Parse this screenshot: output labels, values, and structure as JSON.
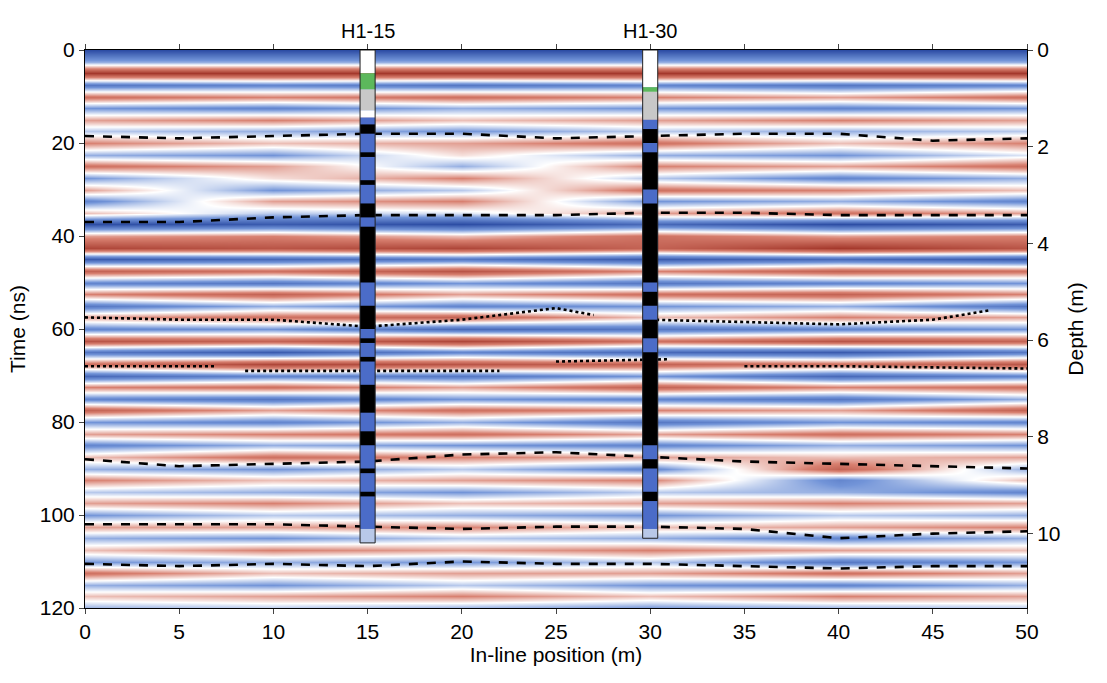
{
  "chart_data": {
    "type": "heatmap",
    "xlabel": "In-line position (m)",
    "ylabel": "Time (ns)",
    "y2label": "Depth (m)",
    "xlim": [
      0,
      50
    ],
    "xticks": [
      0,
      5,
      10,
      15,
      20,
      25,
      30,
      35,
      40,
      45,
      50
    ],
    "ylim": [
      0,
      120
    ],
    "yticks": [
      0,
      20,
      40,
      60,
      80,
      100,
      120
    ],
    "y2lim": [
      0,
      11.54
    ],
    "y2ticks": [
      0,
      2,
      4,
      6,
      8,
      10
    ],
    "heatmap": {
      "zlim": [
        -1,
        1
      ],
      "x": [
        0,
        10,
        20,
        30,
        40,
        50
      ],
      "y": [
        0,
        2.5,
        5,
        7.5,
        10,
        12.5,
        15,
        17.5,
        20,
        22.5,
        25,
        27.5,
        30,
        32.5,
        35,
        37.5,
        40,
        42.5,
        45,
        47.5,
        50,
        52.5,
        55,
        57.5,
        60,
        62.5,
        65,
        67.5,
        70,
        72.5,
        75,
        77.5,
        80,
        82.5,
        85,
        87.5,
        90,
        92.5,
        95,
        97.5,
        100,
        102.5,
        105,
        107.5,
        110,
        112.5,
        115,
        117.5,
        120
      ],
      "z": [
        [
          -0.9,
          -0.9,
          -0.9,
          -0.9,
          -0.9,
          -0.9
        ],
        [
          -0.3,
          -0.3,
          -0.3,
          -0.3,
          -0.3,
          -0.3
        ],
        [
          0.9,
          0.9,
          0.9,
          0.9,
          0.9,
          0.9
        ],
        [
          -0.6,
          -0.5,
          -0.6,
          -0.5,
          -0.6,
          -0.5
        ],
        [
          0.5,
          0.4,
          0.5,
          0.4,
          0.3,
          0.5
        ],
        [
          -0.4,
          -0.5,
          -0.3,
          -0.4,
          -0.5,
          -0.4
        ],
        [
          0.3,
          0.4,
          0.2,
          0.3,
          0.4,
          0.3
        ],
        [
          -0.2,
          -0.3,
          -0.4,
          -0.2,
          -0.3,
          -0.2
        ],
        [
          0.4,
          0.2,
          0.3,
          0.5,
          0.2,
          0.4
        ],
        [
          -0.3,
          -0.4,
          0.1,
          -0.3,
          -0.4,
          -0.1
        ],
        [
          0.5,
          0.3,
          -0.3,
          0.4,
          0.3,
          0.5
        ],
        [
          -0.4,
          0.1,
          0.4,
          -0.2,
          -0.5,
          -0.3
        ],
        [
          0.3,
          -0.4,
          -0.2,
          0.5,
          0.4,
          0.2
        ],
        [
          -0.5,
          0.3,
          0.4,
          -0.4,
          -0.3,
          -0.5
        ],
        [
          0.2,
          -0.2,
          -0.1,
          0.3,
          0.5,
          0.3
        ],
        [
          -0.9,
          -0.8,
          -0.9,
          -0.7,
          -0.9,
          -0.8
        ],
        [
          0.3,
          0.4,
          0.2,
          0.5,
          0.3,
          0.4
        ],
        [
          0.8,
          0.7,
          0.8,
          0.6,
          0.9,
          0.7
        ],
        [
          -0.8,
          -0.7,
          -0.6,
          -0.8,
          -0.7,
          -0.8
        ],
        [
          0.6,
          0.5,
          0.7,
          0.4,
          0.6,
          0.5
        ],
        [
          -0.5,
          -0.6,
          -0.4,
          -0.6,
          -0.5,
          -0.4
        ],
        [
          0.4,
          0.6,
          0.3,
          0.5,
          0.6,
          0.4
        ],
        [
          -0.6,
          -0.3,
          -0.5,
          -0.4,
          -0.3,
          -0.6
        ],
        [
          0.3,
          0.5,
          0.6,
          0.2,
          0.4,
          0.3
        ],
        [
          -0.5,
          -0.4,
          -0.7,
          -0.6,
          -0.5,
          -0.4
        ],
        [
          0.7,
          0.6,
          0.8,
          0.5,
          0.7,
          0.6
        ],
        [
          -0.6,
          -0.8,
          -0.5,
          -0.7,
          -0.8,
          -0.6
        ],
        [
          0.5,
          0.8,
          0.7,
          0.6,
          0.5,
          0.7
        ],
        [
          -0.7,
          -0.5,
          -0.6,
          -0.4,
          -0.7,
          -0.5
        ],
        [
          0.4,
          0.5,
          0.3,
          0.6,
          0.4,
          0.5
        ],
        [
          -0.5,
          -0.6,
          -0.4,
          -0.5,
          -0.6,
          -0.3
        ],
        [
          0.6,
          0.3,
          0.5,
          0.4,
          0.3,
          0.6
        ],
        [
          -0.4,
          -0.5,
          -0.3,
          -0.6,
          -0.4,
          -0.5
        ],
        [
          0.3,
          0.4,
          0.5,
          0.3,
          0.5,
          0.4
        ],
        [
          -0.5,
          -0.3,
          -0.4,
          -0.5,
          -0.3,
          -0.4
        ],
        [
          0.2,
          0.5,
          0.4,
          0.3,
          0.2,
          0.3
        ],
        [
          -0.3,
          -0.4,
          -0.2,
          -0.5,
          0.6,
          -0.3
        ],
        [
          0.4,
          0.2,
          0.3,
          0.4,
          -0.5,
          0.2
        ],
        [
          -0.2,
          -0.3,
          -0.4,
          -0.2,
          -0.3,
          -0.5
        ],
        [
          0.3,
          0.4,
          0.2,
          0.3,
          0.4,
          0.3
        ],
        [
          -0.4,
          -0.2,
          -0.3,
          -0.4,
          -0.2,
          -0.3
        ],
        [
          0.3,
          0.3,
          0.4,
          0.2,
          0.3,
          0.4
        ],
        [
          -0.3,
          -0.4,
          -0.2,
          -0.3,
          -0.5,
          -0.3
        ],
        [
          0.2,
          0.4,
          0.3,
          0.4,
          0.3,
          0.2
        ],
        [
          -0.4,
          -0.3,
          -0.4,
          -0.2,
          -0.6,
          -0.4
        ],
        [
          0.5,
          0.2,
          0.3,
          0.3,
          0.5,
          0.3
        ],
        [
          -0.3,
          -0.4,
          -0.2,
          -0.4,
          -0.5,
          -0.3
        ],
        [
          0.2,
          0.3,
          0.4,
          0.2,
          0.4,
          0.3
        ],
        [
          -0.3,
          -0.2,
          -0.3,
          -0.4,
          -0.3,
          -0.2
        ]
      ]
    },
    "horizons": [
      {
        "line_style": "dashed",
        "color": "#000000",
        "x": [
          0,
          5,
          10,
          15,
          20,
          25,
          30,
          35,
          40,
          45,
          50
        ],
        "values": [
          18.5,
          19,
          18.5,
          18,
          18,
          19,
          18.5,
          18,
          18,
          19.5,
          19
        ]
      },
      {
        "line_style": "dashed",
        "color": "#000000",
        "x": [
          0,
          5,
          10,
          15,
          20,
          25,
          30,
          35,
          40,
          45,
          50
        ],
        "values": [
          37,
          37,
          36,
          35.5,
          35.5,
          35.5,
          35,
          35,
          35.5,
          35.5,
          35.5
        ]
      },
      {
        "line_style": "dotted",
        "color": "#000000",
        "x": [
          0,
          5,
          10,
          15,
          20,
          25,
          27,
          null,
          30,
          35,
          40,
          45,
          48
        ],
        "values": [
          57.5,
          58,
          58,
          59.5,
          58,
          55.5,
          57,
          null,
          58,
          58.5,
          59,
          58,
          56
        ]
      },
      {
        "line_style": "dotted",
        "color": "#000000",
        "x": [
          0,
          7,
          null,
          8.5,
          15,
          22,
          null,
          25,
          31,
          null,
          35,
          40,
          50
        ],
        "values": [
          68,
          68,
          null,
          69,
          69,
          69,
          null,
          67,
          66.5,
          null,
          68,
          68,
          68.5
        ]
      },
      {
        "line_style": "dashed",
        "color": "#000000",
        "x": [
          0,
          5,
          10,
          15,
          20,
          25,
          30,
          35,
          40,
          45,
          50
        ],
        "values": [
          88,
          89.5,
          89,
          88.5,
          87,
          86.5,
          87.5,
          88.5,
          89,
          89.5,
          90
        ]
      },
      {
        "line_style": "dashed",
        "color": "#000000",
        "x": [
          0,
          5,
          10,
          15,
          20,
          25,
          30,
          35,
          40,
          45,
          50
        ],
        "values": [
          102,
          102,
          102,
          102.5,
          103,
          102.5,
          102.5,
          103,
          105,
          104,
          103.5
        ]
      },
      {
        "line_style": "dashed",
        "color": "#000000",
        "x": [
          0,
          5,
          10,
          15,
          20,
          25,
          30,
          35,
          40,
          45,
          50
        ],
        "values": [
          110.5,
          111,
          110.5,
          111,
          110,
          110.5,
          110.5,
          111,
          111.5,
          111,
          111
        ]
      }
    ],
    "boreholes": [
      {
        "label": "H1-15",
        "x": 15,
        "intervals": [
          {
            "top": 0,
            "bottom": 5,
            "color": "#ffffff"
          },
          {
            "top": 5,
            "bottom": 8.5,
            "color": "#5cb85c"
          },
          {
            "top": 8.5,
            "bottom": 13,
            "color": "#c8c8c8"
          },
          {
            "top": 13,
            "bottom": 14.5,
            "color": "#ffffff"
          },
          {
            "top": 14.5,
            "bottom": 103,
            "color": "#4b6cc8"
          },
          {
            "top": 103,
            "bottom": 106,
            "color": "#b8c8e8"
          },
          {
            "top": 16,
            "bottom": 18,
            "color": "#000000"
          },
          {
            "top": 22,
            "bottom": 23,
            "color": "#000000"
          },
          {
            "top": 28,
            "bottom": 29,
            "color": "#000000"
          },
          {
            "top": 33,
            "bottom": 36,
            "color": "#000000"
          },
          {
            "top": 38,
            "bottom": 50,
            "color": "#000000"
          },
          {
            "top": 55,
            "bottom": 60,
            "color": "#000000"
          },
          {
            "top": 62,
            "bottom": 63,
            "color": "#000000"
          },
          {
            "top": 66,
            "bottom": 67,
            "color": "#000000"
          },
          {
            "top": 72,
            "bottom": 78,
            "color": "#000000"
          },
          {
            "top": 82,
            "bottom": 85,
            "color": "#000000"
          },
          {
            "top": 90,
            "bottom": 91,
            "color": "#000000"
          },
          {
            "top": 95,
            "bottom": 96,
            "color": "#000000"
          }
        ]
      },
      {
        "label": "H1-30",
        "x": 30,
        "intervals": [
          {
            "top": 0,
            "bottom": 8,
            "color": "#ffffff"
          },
          {
            "top": 8,
            "bottom": 9,
            "color": "#5cb85c"
          },
          {
            "top": 9,
            "bottom": 15,
            "color": "#c8c8c8"
          },
          {
            "top": 15,
            "bottom": 103,
            "color": "#4b6cc8"
          },
          {
            "top": 103,
            "bottom": 105,
            "color": "#b8c8e8"
          },
          {
            "top": 17,
            "bottom": 20,
            "color": "#000000"
          },
          {
            "top": 22,
            "bottom": 30,
            "color": "#000000"
          },
          {
            "top": 33,
            "bottom": 50,
            "color": "#000000"
          },
          {
            "top": 52,
            "bottom": 55,
            "color": "#000000"
          },
          {
            "top": 58,
            "bottom": 62,
            "color": "#000000"
          },
          {
            "top": 65,
            "bottom": 85,
            "color": "#000000"
          },
          {
            "top": 88,
            "bottom": 90,
            "color": "#000000"
          },
          {
            "top": 95,
            "bottom": 97,
            "color": "#000000"
          }
        ]
      }
    ]
  }
}
